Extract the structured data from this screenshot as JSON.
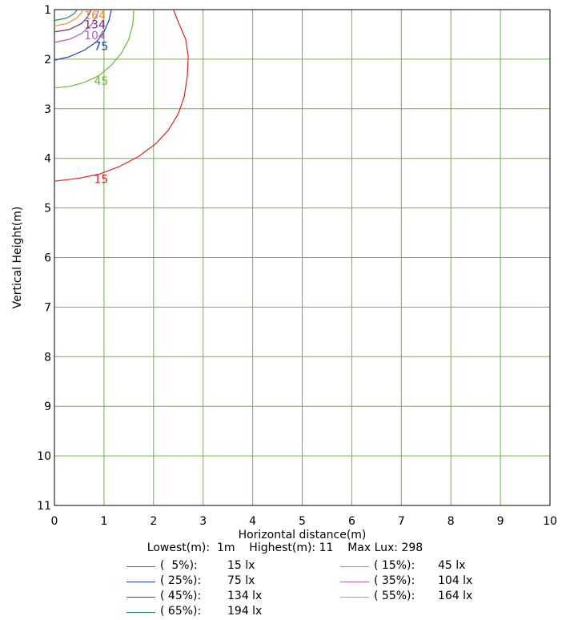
{
  "chart_data": {
    "type": "line",
    "xlabel": "Horizontal distance(m)",
    "ylabel": "Vertical Height(m)",
    "xlim": [
      0,
      10
    ],
    "ylim": [
      1,
      11
    ],
    "y_inverted": true,
    "grid": true,
    "grid_color": "#66bb33",
    "x_ticks": [
      "0",
      "1",
      "2",
      "3",
      "4",
      "5",
      "6",
      "7",
      "8",
      "9",
      "10"
    ],
    "y_ticks": [
      "1",
      "2",
      "3",
      "4",
      "5",
      "6",
      "7",
      "8",
      "9",
      "10",
      "11"
    ],
    "series": [
      {
        "label": "15",
        "color": "#dd2222",
        "label_at": [
          0.8,
          4.4
        ],
        "points": [
          [
            0.0,
            4.46
          ],
          [
            0.5,
            4.4
          ],
          [
            0.9,
            4.32
          ],
          [
            1.3,
            4.17
          ],
          [
            1.7,
            3.96
          ],
          [
            2.05,
            3.7
          ],
          [
            2.3,
            3.43
          ],
          [
            2.5,
            3.1
          ],
          [
            2.62,
            2.75
          ],
          [
            2.68,
            2.35
          ],
          [
            2.7,
            1.95
          ],
          [
            2.65,
            1.6
          ],
          [
            2.52,
            1.3
          ],
          [
            2.4,
            1.0
          ]
        ]
      },
      {
        "label": "45",
        "color": "#66bb33",
        "label_at": [
          0.8,
          2.42
        ],
        "points": [
          [
            0.0,
            2.58
          ],
          [
            0.3,
            2.55
          ],
          [
            0.6,
            2.47
          ],
          [
            0.9,
            2.33
          ],
          [
            1.15,
            2.12
          ],
          [
            1.35,
            1.88
          ],
          [
            1.5,
            1.6
          ],
          [
            1.58,
            1.3
          ],
          [
            1.6,
            1.0
          ]
        ]
      },
      {
        "label": "75",
        "color": "#1f3fa8",
        "label_at": [
          0.8,
          1.72
        ],
        "points": [
          [
            0.0,
            2.02
          ],
          [
            0.3,
            1.95
          ],
          [
            0.6,
            1.82
          ],
          [
            0.85,
            1.65
          ],
          [
            1.0,
            1.45
          ],
          [
            1.1,
            1.22
          ],
          [
            1.15,
            1.0
          ]
        ]
      },
      {
        "label": "104",
        "color": "#b060b0",
        "label_at": [
          0.6,
          1.5
        ],
        "points": [
          [
            0.0,
            1.66
          ],
          [
            0.3,
            1.6
          ],
          [
            0.55,
            1.48
          ],
          [
            0.75,
            1.3
          ],
          [
            0.85,
            1.12
          ],
          [
            0.9,
            1.0
          ]
        ]
      },
      {
        "label": "134",
        "color": "#7a2a8a",
        "label_at": [
          0.6,
          1.28
        ],
        "points": [
          [
            0.0,
            1.45
          ],
          [
            0.3,
            1.4
          ],
          [
            0.55,
            1.28
          ],
          [
            0.68,
            1.13
          ],
          [
            0.74,
            1.0
          ]
        ]
      },
      {
        "label": "164",
        "color": "#f0902a",
        "label_at": [
          0.6,
          1.1
        ],
        "points": [
          [
            0.0,
            1.33
          ],
          [
            0.25,
            1.28
          ],
          [
            0.45,
            1.17
          ],
          [
            0.55,
            1.06
          ],
          [
            0.58,
            1.0
          ]
        ]
      },
      {
        "label": "194",
        "color": "#1a8a5a",
        "label_at": null,
        "points": [
          [
            0.0,
            1.22
          ],
          [
            0.25,
            1.17
          ],
          [
            0.4,
            1.08
          ],
          [
            0.46,
            1.0
          ]
        ]
      }
    ]
  },
  "summary": "Lowest(m):  1m    Highest(m): 11    Max Lux: 298",
  "legend": [
    {
      "pct": "(  5%):",
      "lux": "15 lx",
      "color": "#dd2222"
    },
    {
      "pct": "( 15%):",
      "lux": "45 lx",
      "color": "#66bb33"
    },
    {
      "pct": "( 25%):",
      "lux": "75 lx",
      "color": "#1f3fa8"
    },
    {
      "pct": "( 35%):",
      "lux": "104 lx",
      "color": "#b060b0"
    },
    {
      "pct": "( 45%):",
      "lux": "134 lx",
      "color": "#7a2a8a"
    },
    {
      "pct": "( 55%):",
      "lux": "164 lx",
      "color": "#f0902a"
    },
    {
      "pct": "( 65%):",
      "lux": "194 lx",
      "color": "#1a8a5a"
    }
  ]
}
